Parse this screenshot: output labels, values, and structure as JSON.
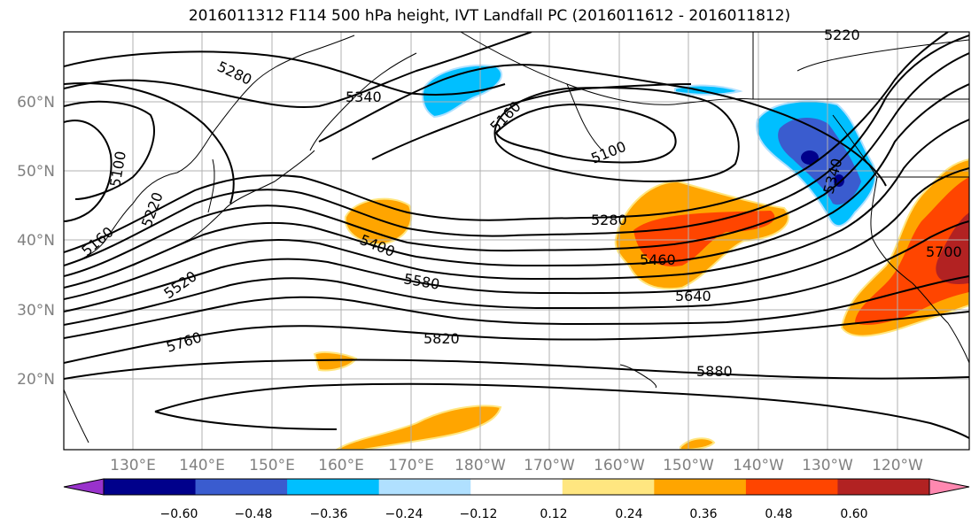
{
  "title": "2016011312 F114 500 hPa height, IVT Landfall PC (2016011612 - 2016011812)",
  "lat_labels": [
    "60°N",
    "50°N",
    "40°N",
    "30°N",
    "20°N"
  ],
  "lon_labels": [
    "130°E",
    "140°E",
    "150°E",
    "160°E",
    "170°E",
    "180°W",
    "170°W",
    "160°W",
    "150°W",
    "140°W",
    "130°W",
    "120°W"
  ],
  "contour_labels": [
    "5280",
    "5340",
    "5160",
    "5100",
    "5100",
    "5220",
    "5160",
    "5220",
    "5400",
    "5520",
    "5580",
    "5760",
    "5820",
    "5280",
    "5460",
    "5640",
    "5880",
    "5700",
    "5340"
  ],
  "colorbar": {
    "ticks": [
      "−0.60",
      "−0.48",
      "−0.36",
      "−0.24",
      "−0.12",
      "0.12",
      "0.24",
      "0.36",
      "0.48",
      "0.60"
    ],
    "colors": [
      "#9932cc",
      "#00008b",
      "#3a5ccf",
      "#00bfff",
      "#b0e0ff",
      "#ffffff",
      "#ffe680",
      "#ffa500",
      "#ff4500",
      "#b22222",
      "#ff88b0"
    ]
  }
}
